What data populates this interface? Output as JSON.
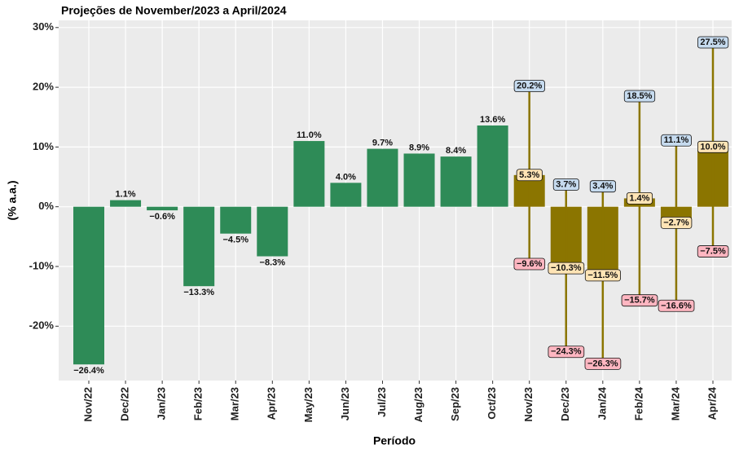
{
  "chart_data": {
    "type": "bar",
    "title": "Projeções de November/2023 a April/2024",
    "x_label": "Período",
    "y_label": "(% a.a.)",
    "categories": [
      "Nov/22",
      "Dec/22",
      "Jan/23",
      "Feb/23",
      "Mar/23",
      "Apr/23",
      "May/23",
      "Jun/23",
      "Jul/23",
      "Aug/23",
      "Sep/23",
      "Oct/23",
      "Nov/23",
      "Dec/23",
      "Jan/24",
      "Feb/24",
      "Mar/24",
      "Apr/24"
    ],
    "series": [
      {
        "color": "#2e8b57",
        "values": [
          -26.4,
          1.1,
          -0.6,
          -13.3,
          -4.5,
          -8.3,
          11.0,
          4.0,
          9.7,
          8.9,
          8.4,
          13.6,
          null,
          null,
          null,
          null,
          null,
          null
        ],
        "value_labels": [
          "−26.4%",
          "1.1%",
          "−0.6%",
          "−13.3%",
          "−4.5%",
          "−8.3%",
          "11.0%",
          "4.0%",
          "9.7%",
          "8.9%",
          "8.4%",
          "13.6%",
          null,
          null,
          null,
          null,
          null,
          null
        ]
      },
      {
        "color": "#8b7500",
        "values": [
          null,
          null,
          null,
          null,
          null,
          null,
          null,
          null,
          null,
          null,
          null,
          null,
          5.3,
          -10.3,
          -11.5,
          1.4,
          -2.7,
          10.0
        ],
        "value_labels": [
          null,
          null,
          null,
          null,
          null,
          null,
          null,
          null,
          null,
          null,
          null,
          null,
          "5.3%",
          "−10.3%",
          "−11.5%",
          "1.4%",
          "−2.7%",
          "10.0%"
        ],
        "high": [
          null,
          null,
          null,
          null,
          null,
          null,
          null,
          null,
          null,
          null,
          null,
          null,
          20.2,
          3.7,
          3.4,
          18.5,
          11.1,
          27.5
        ],
        "high_labels": [
          null,
          null,
          null,
          null,
          null,
          null,
          null,
          null,
          null,
          null,
          null,
          null,
          "20.2%",
          "3.7%",
          "3.4%",
          "18.5%",
          "11.1%",
          "27.5%"
        ],
        "low": [
          null,
          null,
          null,
          null,
          null,
          null,
          null,
          null,
          null,
          null,
          null,
          null,
          -9.6,
          -24.3,
          -26.3,
          -15.7,
          -16.6,
          -7.5
        ],
        "low_labels": [
          null,
          null,
          null,
          null,
          null,
          null,
          null,
          null,
          null,
          null,
          null,
          null,
          "−9.6%",
          "−24.3%",
          "−26.3%",
          "−15.7%",
          "−16.6%",
          "−7.5%"
        ]
      }
    ],
    "ylim": [
      -29.1,
      31.2
    ],
    "yticks": [
      {
        "value": -20,
        "label": "-20%"
      },
      {
        "value": -10,
        "label": "-10%"
      },
      {
        "value": 0,
        "label": "0%"
      },
      {
        "value": 10,
        "label": "10%"
      },
      {
        "value": 20,
        "label": "20%"
      },
      {
        "value": 30,
        "label": "30%"
      }
    ],
    "grid": true
  }
}
